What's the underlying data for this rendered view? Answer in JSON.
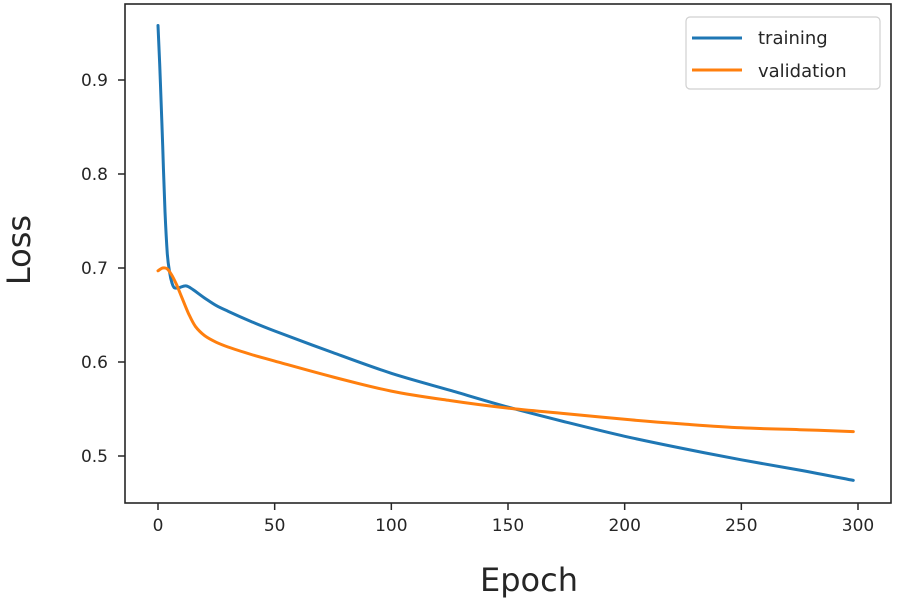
{
  "chart_data": {
    "type": "line",
    "title": "",
    "xlabel": "Epoch",
    "ylabel": "Loss",
    "xlim": [
      -14,
      314
    ],
    "ylim": [
      0.4505,
      0.981
    ],
    "xticks": [
      0,
      50,
      100,
      150,
      200,
      250,
      300
    ],
    "yticks": [
      0.5,
      0.6,
      0.7,
      0.8,
      0.9
    ],
    "xtick_labels": [
      "0",
      "50",
      "100",
      "150",
      "200",
      "250",
      "300"
    ],
    "ytick_labels": [
      "0.5",
      "0.6",
      "0.7",
      "0.8",
      "0.9"
    ],
    "grid": false,
    "legend_position": "upper right",
    "series": [
      {
        "name": "training",
        "color": "#1f77b4",
        "x": [
          0,
          1,
          2,
          3,
          4,
          5,
          6,
          7,
          9,
          12,
          15,
          20,
          25,
          30,
          40,
          50,
          75,
          100,
          125,
          150,
          175,
          200,
          225,
          250,
          275,
          298
        ],
        "values": [
          0.958,
          0.9,
          0.83,
          0.76,
          0.715,
          0.695,
          0.684,
          0.679,
          0.679,
          0.681,
          0.677,
          0.668,
          0.66,
          0.654,
          0.643,
          0.633,
          0.61,
          0.588,
          0.57,
          0.552,
          0.536,
          0.521,
          0.508,
          0.496,
          0.485,
          0.474
        ]
      },
      {
        "name": "validation",
        "color": "#ff7f0e",
        "x": [
          0,
          2,
          4,
          6,
          8,
          10,
          13,
          16,
          20,
          25,
          30,
          40,
          50,
          75,
          100,
          125,
          150,
          175,
          200,
          225,
          250,
          275,
          298
        ],
        "values": [
          0.697,
          0.7,
          0.699,
          0.692,
          0.682,
          0.67,
          0.652,
          0.638,
          0.628,
          0.621,
          0.616,
          0.608,
          0.601,
          0.584,
          0.569,
          0.559,
          0.551,
          0.545,
          0.539,
          0.534,
          0.53,
          0.528,
          0.526
        ]
      }
    ]
  },
  "legend": {
    "items": [
      {
        "label": "training",
        "color": "#1f77b4"
      },
      {
        "label": "validation",
        "color": "#ff7f0e"
      }
    ]
  },
  "axes": {
    "xlabel": "Epoch",
    "ylabel": "Loss"
  }
}
